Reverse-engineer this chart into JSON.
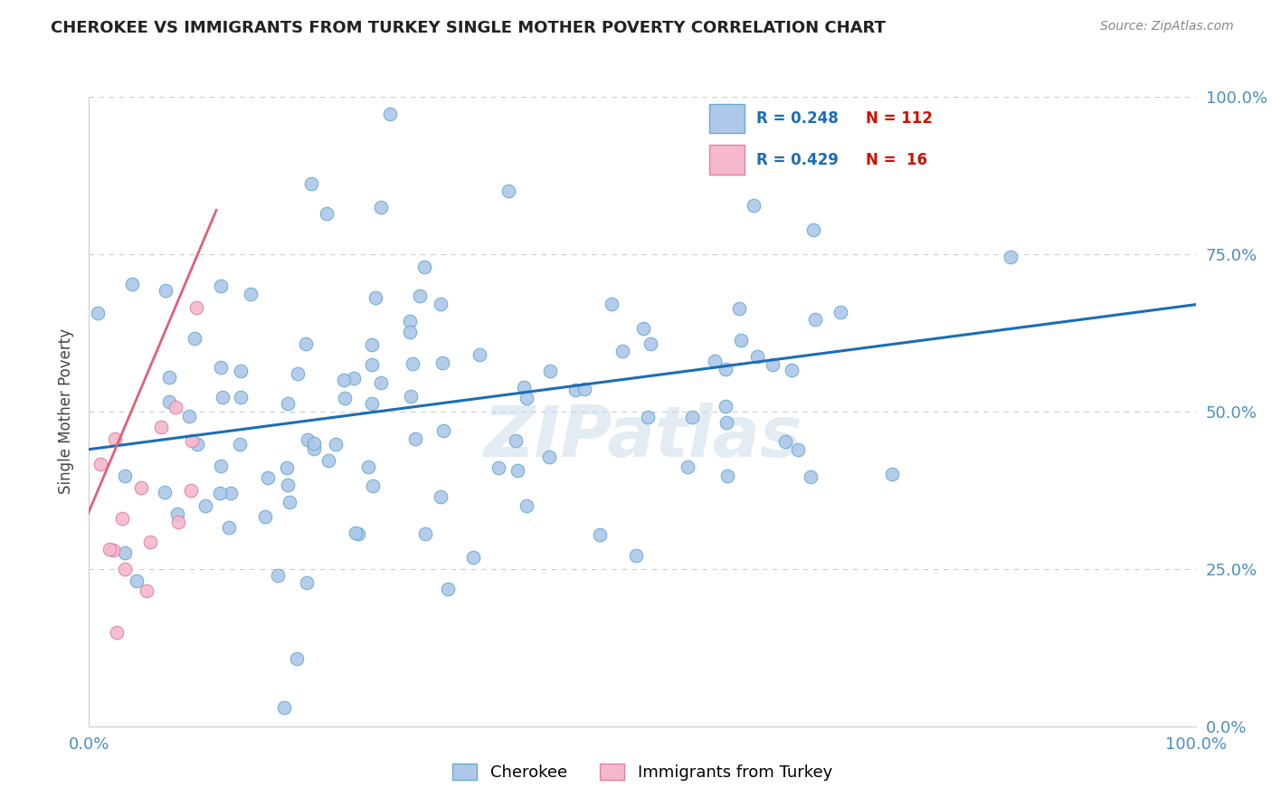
{
  "title": "CHEROKEE VS IMMIGRANTS FROM TURKEY SINGLE MOTHER POVERTY CORRELATION CHART",
  "source": "Source: ZipAtlas.com",
  "ylabel": "Single Mother Poverty",
  "xlim": [
    0,
    1
  ],
  "ylim": [
    0,
    1
  ],
  "ytick_labels": [
    "0.0%",
    "25.0%",
    "50.0%",
    "75.0%",
    "100.0%"
  ],
  "ytick_positions": [
    0.0,
    0.25,
    0.5,
    0.75,
    1.0
  ],
  "watermark": "ZIPatlas",
  "legend_cherokee": "Cherokee",
  "legend_turkey": "Immigrants from Turkey",
  "cherokee_R": "0.248",
  "cherokee_N": "112",
  "turkey_R": "0.429",
  "turkey_N": "16",
  "cherokee_color": "#adc8e8",
  "cherokee_edge_color": "#6aaad4",
  "cherokee_line_color": "#1a6eb5",
  "turkey_color": "#f5b8cc",
  "turkey_edge_color": "#e080a0",
  "turkey_line_color": "#e0607a",
  "background_color": "#ffffff",
  "grid_color": "#cccccc",
  "cherokee_trendline_x": [
    0.0,
    1.0
  ],
  "cherokee_trendline_y": [
    0.44,
    0.67
  ],
  "turkey_trendline_x": [
    -0.01,
    0.115
  ],
  "turkey_trendline_y": [
    0.3,
    0.82
  ]
}
